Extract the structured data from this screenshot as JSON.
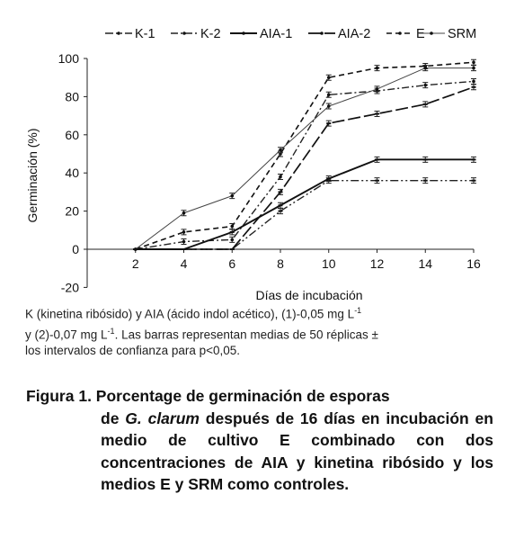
{
  "chart_data": {
    "type": "line",
    "title": "",
    "xlabel": "Días de incubación",
    "ylabel": "Germinación (%)",
    "xlim": [
      0,
      16
    ],
    "ylim": [
      -20,
      100
    ],
    "x": [
      2,
      4,
      6,
      8,
      10,
      12,
      14,
      16
    ],
    "xticks": [
      "2",
      "4",
      "6",
      "8",
      "10",
      "12",
      "14",
      "16"
    ],
    "yticks": [
      "-20",
      "0",
      "20",
      "40",
      "60",
      "80",
      "100"
    ],
    "grid": false,
    "legend_position": "top",
    "error_bars": true,
    "series": [
      {
        "name": "K-1",
        "style": "dash-dot-dot",
        "values": [
          0,
          0,
          0,
          20,
          36,
          36,
          36,
          36
        ]
      },
      {
        "name": "K-2",
        "style": "dash-dot",
        "values": [
          0,
          4,
          5,
          38,
          81,
          83,
          86,
          88
        ]
      },
      {
        "name": "AIA-1",
        "style": "solid-thick",
        "values": [
          0,
          0,
          9,
          23,
          37,
          47,
          47,
          47
        ]
      },
      {
        "name": "AIA-2",
        "style": "long-dash",
        "values": [
          0,
          0,
          0,
          30,
          66,
          71,
          76,
          85
        ]
      },
      {
        "name": "E",
        "style": "dash",
        "values": [
          0,
          9,
          12,
          50,
          90,
          95,
          96,
          98
        ]
      },
      {
        "name": "SRM",
        "style": "solid-thin",
        "values": [
          0,
          19,
          28,
          52,
          75,
          84,
          95,
          95
        ]
      }
    ]
  },
  "note": {
    "line1_a": "K (kinetina ribósido) y AIA (ácido indol acético), (1)-0,05 mg L",
    "line1_sup": "-1",
    "line2_a": "y (2)-0,07 mg L",
    "line2_sup": "-1",
    "line2_b": ". Las barras representan medias de 50 réplicas ±",
    "line3": "los intervalos de confianza para p<0,05."
  },
  "caption": {
    "label": "Figura 1.",
    "part1": " Porcentage de germinación de esporas",
    "part2": "de ",
    "species": "G. clarum",
    "part3": " después de 16 días en incubación en medio de cultivo E combinado con dos concentraciones de AIA y kinetina ribósido y los medios E y SRM como controles."
  }
}
